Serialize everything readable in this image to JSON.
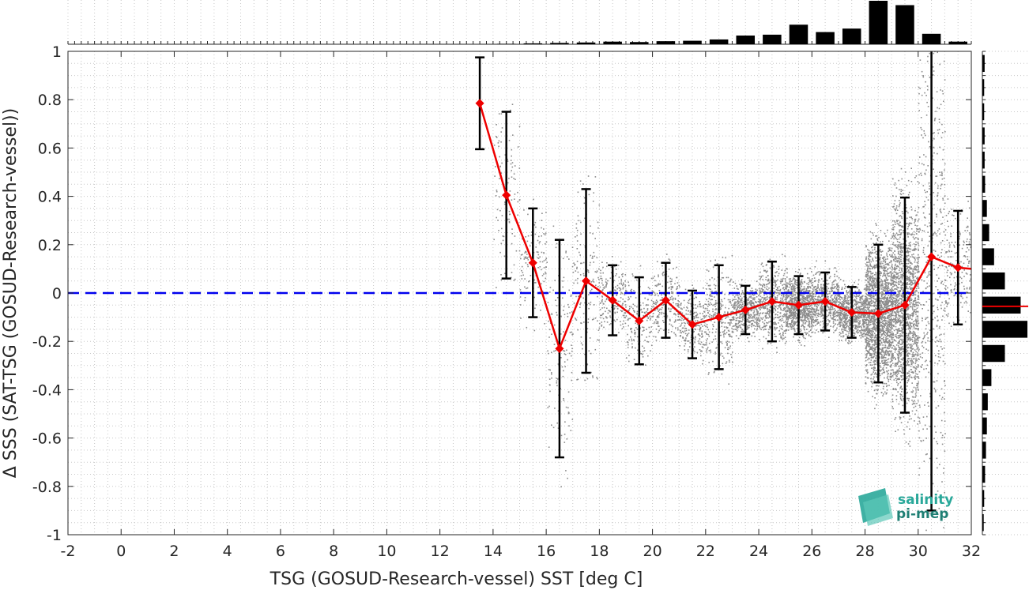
{
  "chart_data": {
    "type": "scatter",
    "xlabel": "TSG (GOSUD-Research-vessel) SST [deg C]",
    "ylabel": "Δ SSS (SAT-TSG (GOSUD-Research-vessel))",
    "xlim": [
      -2,
      32
    ],
    "ylim": [
      -1,
      1
    ],
    "x_ticks": [
      "-2",
      "0",
      "2",
      "4",
      "6",
      "8",
      "10",
      "12",
      "14",
      "16",
      "18",
      "20",
      "22",
      "24",
      "26",
      "28",
      "30",
      "32"
    ],
    "y_ticks": [
      "-1",
      "-0.8",
      "-0.6",
      "-0.4",
      "-0.2",
      "0",
      "0.2",
      "0.4",
      "0.6",
      "0.8",
      "1"
    ],
    "grid": true,
    "reference_line": {
      "y": 0,
      "style": "dashed",
      "color": "#0000ee"
    },
    "binned_mean": {
      "color": "#ee0000",
      "x": [
        13.5,
        14.5,
        15.5,
        16.5,
        17.5,
        18.5,
        19.5,
        20.5,
        21.5,
        22.5,
        23.5,
        24.5,
        25.5,
        26.5,
        27.5,
        28.5,
        29.5,
        30.5,
        31.5,
        32
      ],
      "y": [
        0.785,
        0.405,
        0.125,
        -0.23,
        0.05,
        -0.03,
        -0.115,
        -0.03,
        -0.13,
        -0.1,
        -0.07,
        -0.035,
        -0.05,
        -0.035,
        -0.08,
        -0.085,
        -0.05,
        0.15,
        0.105,
        0.1
      ],
      "err": [
        0.19,
        0.345,
        0.225,
        0.45,
        0.38,
        0.145,
        0.18,
        0.155,
        0.14,
        0.215,
        0.1,
        0.165,
        0.12,
        0.12,
        0.105,
        0.285,
        0.445,
        1.05,
        0.235,
        null
      ]
    },
    "top_histogram": {
      "x": [
        14.5,
        15.5,
        16.5,
        17.5,
        18.5,
        19.5,
        20.5,
        21.5,
        22.5,
        23.5,
        24.5,
        25.5,
        26.5,
        27.5,
        28.5,
        29.5,
        30.5,
        31.5
      ],
      "values": [
        0.01,
        0.02,
        0.03,
        0.04,
        0.06,
        0.05,
        0.07,
        0.08,
        0.11,
        0.2,
        0.22,
        0.45,
        0.28,
        0.36,
        1.0,
        0.9,
        0.24,
        0.06
      ]
    },
    "right_histogram": {
      "y": [
        0.95,
        0.85,
        0.75,
        0.65,
        0.55,
        0.45,
        0.35,
        0.25,
        0.15,
        0.05,
        -0.05,
        -0.15,
        -0.25,
        -0.35,
        -0.45,
        -0.55,
        -0.65,
        -0.75,
        -0.85,
        -0.95
      ],
      "values": [
        0.05,
        0.04,
        0.04,
        0.05,
        0.05,
        0.06,
        0.1,
        0.15,
        0.26,
        0.5,
        0.85,
        1.0,
        0.5,
        0.2,
        0.12,
        0.1,
        0.08,
        0.06,
        0.04,
        0.03
      ],
      "median_line": {
        "y": -0.055,
        "color": "#ee0000"
      }
    }
  },
  "logo": {
    "line1": "salinity",
    "line2": "pi-mep"
  }
}
